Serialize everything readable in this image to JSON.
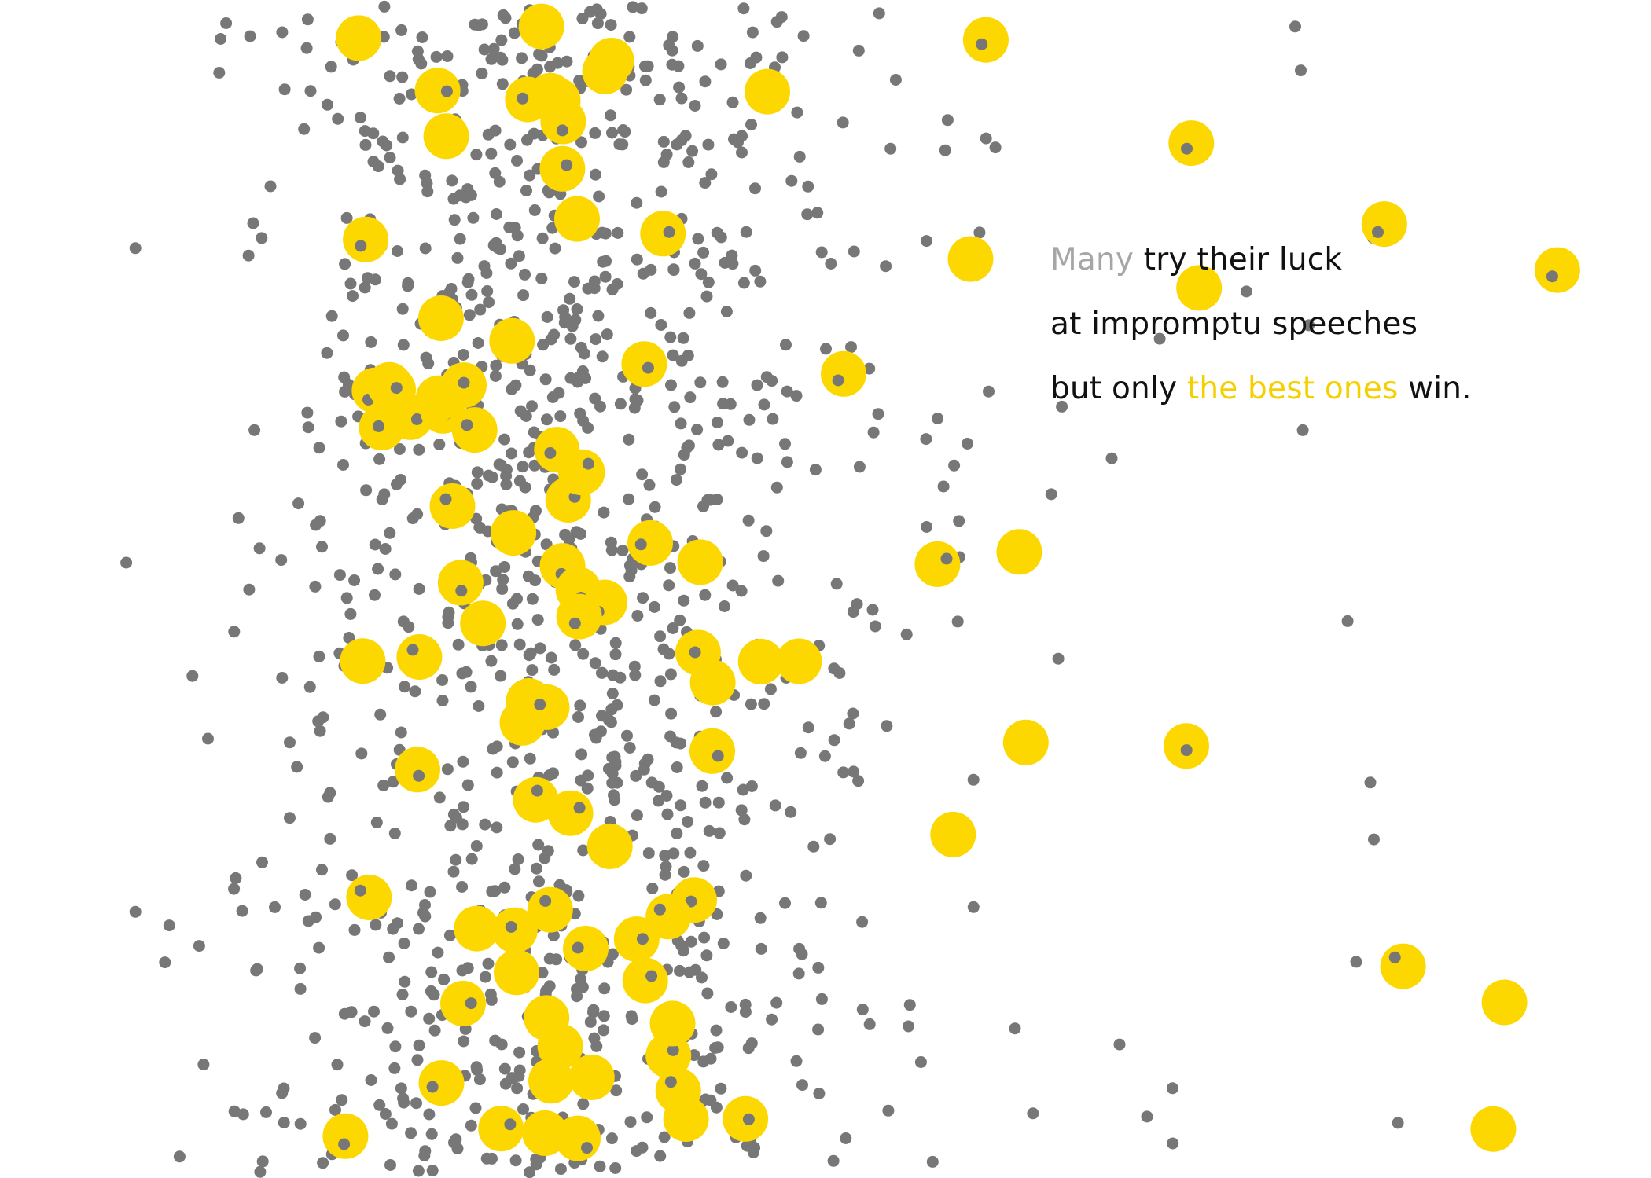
{
  "caption": {
    "line1": {
      "highlight": "Many",
      "rest": " try their luck"
    },
    "line2": {
      "text": "at impromptu speeches"
    },
    "line3": {
      "before": "but only ",
      "highlight": "the best ones",
      "after": " win."
    }
  },
  "colors": {
    "background": "#ffffff",
    "dot": "#777777",
    "winner": "#fdd800",
    "caption_text": "#111111",
    "caption_muted": "#a6a6a6",
    "caption_accent": "#f5d000"
  },
  "chart_data": {
    "type": "scatter",
    "title": "",
    "xlabel": "",
    "ylabel": "",
    "axes_visible": false,
    "grid": false,
    "series": [
      {
        "role": "all-speeches",
        "color": "#777777",
        "size": "small",
        "count": 1200
      },
      {
        "role": "winning-speeches",
        "color": "#fdd800",
        "size": "large",
        "count": 95
      }
    ]
  }
}
